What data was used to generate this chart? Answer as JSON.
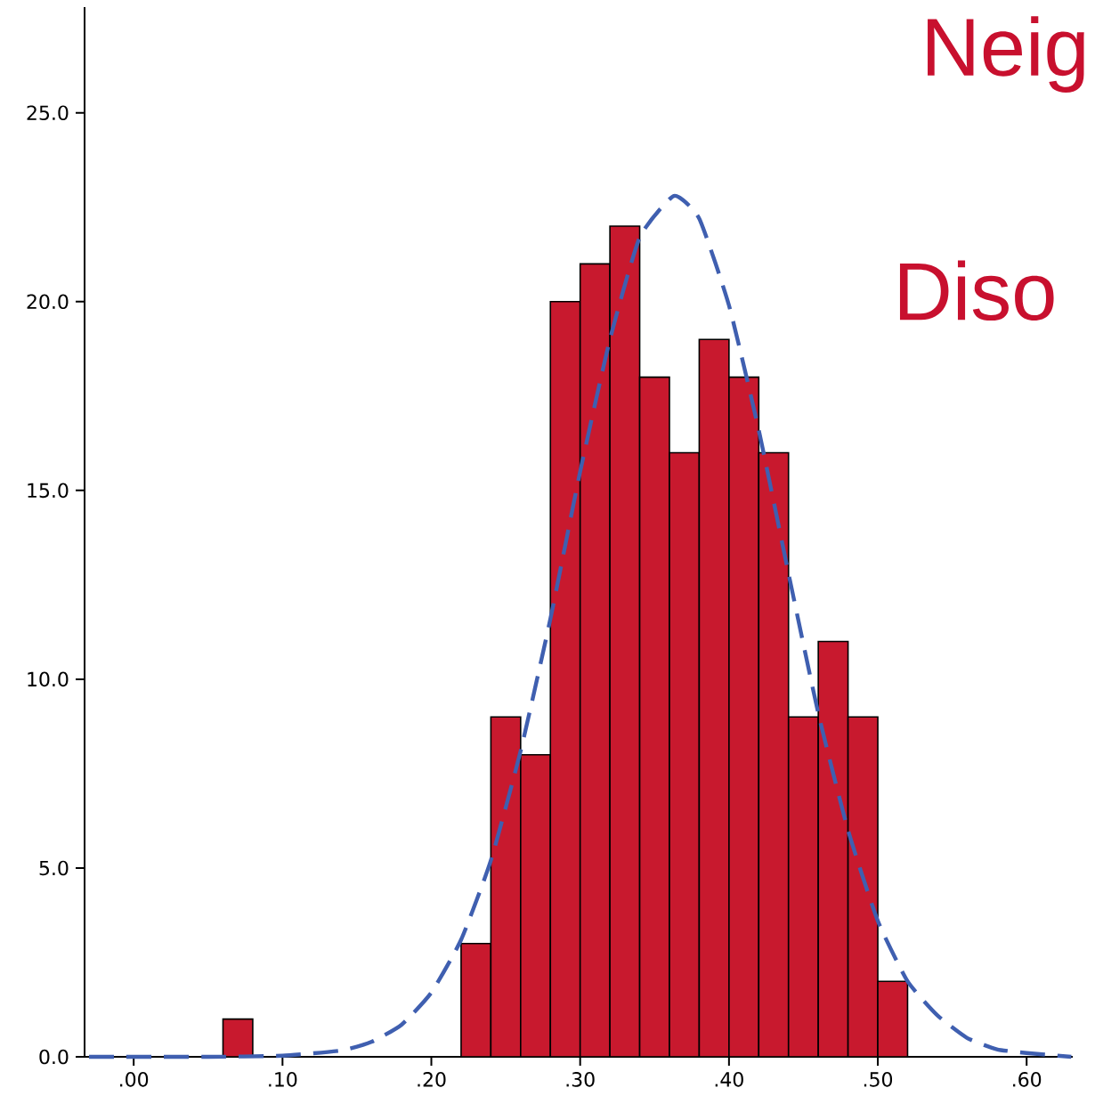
{
  "chart_data": {
    "type": "histogram",
    "bins": [
      0.06,
      0.08,
      0.1,
      0.12,
      0.14,
      0.16,
      0.18,
      0.2,
      0.22,
      0.24,
      0.26,
      0.28,
      0.3,
      0.32,
      0.34,
      0.36,
      0.38,
      0.4,
      0.42,
      0.44,
      0.46,
      0.48,
      0.5,
      0.52
    ],
    "values": [
      1,
      0,
      0,
      0,
      0,
      0,
      0,
      0,
      3,
      9,
      8,
      20,
      21,
      22,
      18,
      16,
      19,
      18,
      16,
      9,
      11,
      9,
      2
    ],
    "color": "#c8192e",
    "series": [
      {
        "type": "line",
        "color": "#3f5fb0",
        "line_style": "dashed",
        "x": [
          -0.03,
          0.05,
          0.1,
          0.14,
          0.16,
          0.18,
          0.2,
          0.22,
          0.24,
          0.26,
          0.28,
          0.3,
          0.32,
          0.34,
          0.363,
          0.38,
          0.4,
          0.42,
          0.44,
          0.46,
          0.48,
          0.5,
          0.52,
          0.54,
          0.56,
          0.58,
          0.6,
          0.63
        ],
        "values": [
          0.0,
          0.0,
          0.03,
          0.17,
          0.4,
          0.85,
          1.7,
          3.1,
          5.2,
          8.1,
          11.6,
          15.5,
          19.0,
          21.7,
          22.8,
          22.2,
          19.9,
          16.6,
          12.8,
          9.1,
          6.0,
          3.6,
          2.0,
          1.1,
          0.5,
          0.2,
          0.1,
          0.0
        ]
      }
    ],
    "xlim": [
      -0.033,
      0.631
    ],
    "ylim": [
      0,
      27.8
    ],
    "xticks": [
      {
        "value": 0,
        "label": ".00"
      },
      {
        "value": 0.1,
        "label": ".10"
      },
      {
        "value": 0.2,
        "label": ".20"
      },
      {
        "value": 0.3,
        "label": ".30"
      },
      {
        "value": 0.4,
        "label": ".40"
      },
      {
        "value": 0.5,
        "label": ".50"
      },
      {
        "value": 0.6,
        "label": ".60"
      }
    ],
    "yticks": [
      {
        "value": 0,
        "label": "0.0"
      },
      {
        "value": 5,
        "label": "5.0"
      },
      {
        "value": 10,
        "label": "10.0"
      },
      {
        "value": 15,
        "label": "15.0"
      },
      {
        "value": 20,
        "label": "20.0"
      },
      {
        "value": 25,
        "label": "25.0"
      }
    ],
    "annotations": [
      "Neig",
      "Diso"
    ],
    "grid": false
  }
}
